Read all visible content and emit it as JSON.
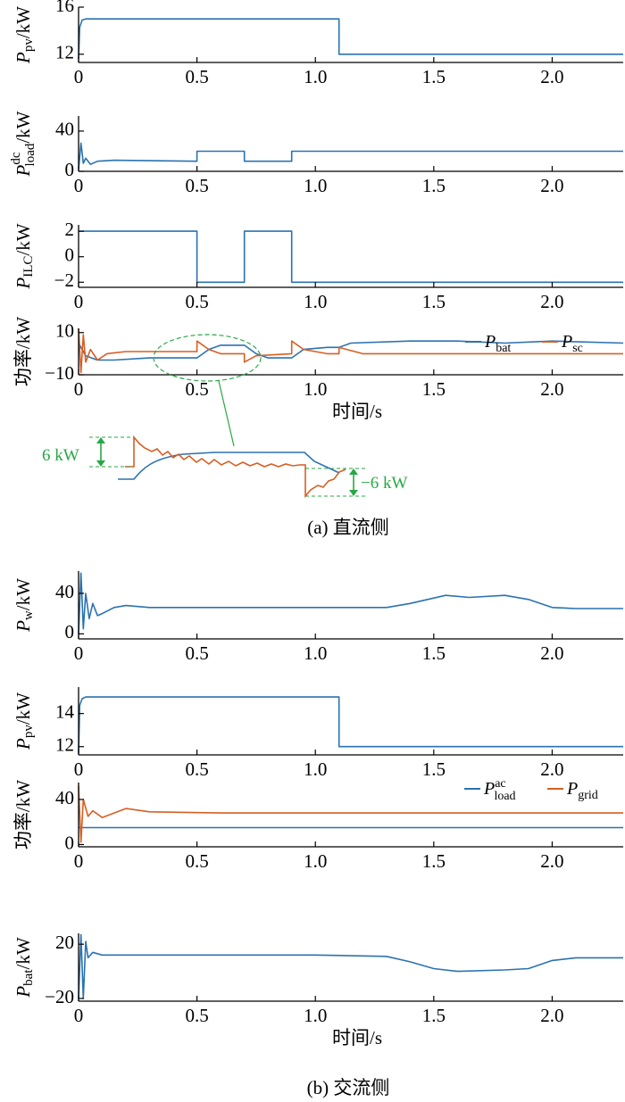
{
  "colors": {
    "blue": "#2b72b0",
    "orange": "#d65f24",
    "green": "#27a845",
    "axis": "#000000"
  },
  "section_a_caption": "(a)  直流侧",
  "section_b_caption": "(b)  交流侧",
  "zoom_annotations": {
    "up": "6 kW",
    "down": "−6 kW"
  },
  "chart_data": [
    {
      "id": "a1",
      "type": "line",
      "ylabel": "P_pv/kW",
      "xlim": [
        0,
        2.3
      ],
      "ylim": [
        11.3,
        16.0
      ],
      "yticks": [
        12,
        16
      ],
      "xticks": [
        0,
        0.5,
        1.0,
        1.5,
        2.0
      ],
      "xticklabels": [
        "0",
        "0.5",
        "1.0",
        "1.5",
        "2.0"
      ],
      "series": [
        {
          "color": "blue",
          "points": [
            [
              0,
              11.6
            ],
            [
              0.005,
              14.3
            ],
            [
              0.015,
              14.9
            ],
            [
              0.03,
              15.0
            ],
            [
              0.6,
              15.0
            ],
            [
              1.1,
              15.0
            ],
            [
              1.1,
              12.0
            ],
            [
              2.3,
              12.0
            ]
          ]
        }
      ]
    },
    {
      "id": "a2",
      "type": "line",
      "ylabel": "P_load^dc/kW",
      "xlim": [
        0,
        2.3
      ],
      "ylim": [
        0,
        55
      ],
      "yticks": [
        0,
        40
      ],
      "xticks": [
        0,
        0.5,
        1.0,
        1.5,
        2.0
      ],
      "xticklabels": [
        "0",
        "0.5",
        "1.0",
        "1.5",
        "2.0"
      ],
      "series": [
        {
          "color": "blue",
          "points": [
            [
              0,
              2
            ],
            [
              0.01,
              28
            ],
            [
              0.02,
              8
            ],
            [
              0.03,
              13
            ],
            [
              0.05,
              7
            ],
            [
              0.08,
              10
            ],
            [
              0.15,
              11
            ],
            [
              0.5,
              10
            ],
            [
              0.5,
              20
            ],
            [
              0.7,
              20
            ],
            [
              0.7,
              10
            ],
            [
              0.9,
              10
            ],
            [
              0.9,
              20
            ],
            [
              1.5,
              20
            ],
            [
              2.3,
              20
            ]
          ]
        }
      ]
    },
    {
      "id": "a3",
      "type": "line",
      "ylabel": "P_ILC/kW",
      "xlim": [
        0,
        2.3
      ],
      "ylim": [
        -2.4,
        2.5
      ],
      "yticks": [
        -2,
        0,
        2
      ],
      "yticklabels": [
        "−2",
        "0",
        "2"
      ],
      "xticks": [
        0,
        0.5,
        1.0,
        1.5,
        2.0
      ],
      "xticklabels": [
        "0",
        "0.5",
        "1.0",
        "1.5",
        "2.0"
      ],
      "series": [
        {
          "color": "blue",
          "points": [
            [
              0,
              2
            ],
            [
              0.5,
              2
            ],
            [
              0.5,
              -2
            ],
            [
              0.7,
              -2
            ],
            [
              0.7,
              2
            ],
            [
              0.9,
              2
            ],
            [
              0.9,
              -2
            ],
            [
              2.3,
              -2
            ]
          ]
        }
      ]
    },
    {
      "id": "a4",
      "type": "line",
      "ylabel": "功率/kW",
      "xlabel": "时间/s",
      "xlim": [
        0,
        2.3
      ],
      "ylim": [
        -10,
        12
      ],
      "yticks": [
        -10,
        10
      ],
      "yticklabels": [
        "−10",
        "10"
      ],
      "xticks": [
        0,
        0.5,
        1.0,
        1.5,
        2.0
      ],
      "xticklabels": [
        "0",
        "0.5",
        "1.0",
        "1.5",
        "2.0"
      ],
      "legend": {
        "position": "top-right",
        "items": [
          {
            "color": "blue",
            "label": "P_bat"
          },
          {
            "color": "orange",
            "label": "P_sc"
          }
        ]
      },
      "series": [
        {
          "name": "P_bat",
          "color": "blue",
          "points": [
            [
              0,
              5
            ],
            [
              0.01,
              3
            ],
            [
              0.03,
              -1
            ],
            [
              0.08,
              -3
            ],
            [
              0.15,
              -3
            ],
            [
              0.3,
              -2
            ],
            [
              0.5,
              -2
            ],
            [
              0.55,
              2
            ],
            [
              0.6,
              4
            ],
            [
              0.7,
              4
            ],
            [
              0.75,
              0
            ],
            [
              0.8,
              -2
            ],
            [
              0.9,
              -2
            ],
            [
              0.95,
              2
            ],
            [
              1.05,
              3
            ],
            [
              1.1,
              3
            ],
            [
              1.15,
              5
            ],
            [
              1.4,
              6
            ],
            [
              1.6,
              6
            ],
            [
              1.8,
              5
            ],
            [
              2.0,
              6
            ],
            [
              2.3,
              5
            ]
          ]
        },
        {
          "name": "P_sc",
          "color": "orange",
          "points": [
            [
              0,
              12
            ],
            [
              0.01,
              -9
            ],
            [
              0.02,
              9
            ],
            [
              0.03,
              -4
            ],
            [
              0.05,
              2
            ],
            [
              0.08,
              -3
            ],
            [
              0.12,
              0
            ],
            [
              0.2,
              1
            ],
            [
              0.5,
              1
            ],
            [
              0.5,
              6
            ],
            [
              0.55,
              2
            ],
            [
              0.6,
              0
            ],
            [
              0.7,
              0
            ],
            [
              0.7,
              -4
            ],
            [
              0.75,
              -1
            ],
            [
              0.9,
              0
            ],
            [
              0.9,
              6
            ],
            [
              0.95,
              2
            ],
            [
              1.05,
              0
            ],
            [
              1.1,
              0
            ],
            [
              1.1,
              3
            ],
            [
              1.2,
              0
            ],
            [
              2.3,
              0
            ]
          ]
        }
      ]
    },
    {
      "id": "b1",
      "type": "line",
      "ylabel": "P_w/kW",
      "xlim": [
        0,
        2.3
      ],
      "ylim": [
        -5,
        62
      ],
      "yticks": [
        0,
        40
      ],
      "xticks": [
        0,
        0.5,
        1.0,
        1.5,
        2.0
      ],
      "xticklabels": [
        "0",
        "0.5",
        "1.0",
        "1.5",
        "2.0"
      ],
      "series": [
        {
          "color": "blue",
          "points": [
            [
              0,
              0
            ],
            [
              0.01,
              60
            ],
            [
              0.02,
              5
            ],
            [
              0.03,
              40
            ],
            [
              0.045,
              15
            ],
            [
              0.06,
              30
            ],
            [
              0.08,
              18
            ],
            [
              0.1,
              20
            ],
            [
              0.15,
              26
            ],
            [
              0.2,
              28
            ],
            [
              0.3,
              26
            ],
            [
              0.6,
              26
            ],
            [
              1.0,
              26
            ],
            [
              1.3,
              26
            ],
            [
              1.4,
              30
            ],
            [
              1.55,
              38
            ],
            [
              1.65,
              36
            ],
            [
              1.8,
              38
            ],
            [
              1.9,
              34
            ],
            [
              2.0,
              26
            ],
            [
              2.1,
              25
            ],
            [
              2.3,
              25
            ]
          ]
        }
      ]
    },
    {
      "id": "b2",
      "type": "line",
      "ylabel": "P_pv/kW",
      "xlim": [
        0,
        2.3
      ],
      "ylim": [
        11.5,
        15.6
      ],
      "yticks": [
        12,
        14
      ],
      "xticks": [
        0,
        0.5,
        1.0,
        1.5,
        2.0
      ],
      "xticklabels": [
        "0",
        "0.5",
        "1.0",
        "1.5",
        "2.0"
      ],
      "series": [
        {
          "color": "blue",
          "points": [
            [
              0,
              11.6
            ],
            [
              0.005,
              14.5
            ],
            [
              0.015,
              14.9
            ],
            [
              0.03,
              15.0
            ],
            [
              1.1,
              15.0
            ],
            [
              1.1,
              12.0
            ],
            [
              2.3,
              12.0
            ]
          ]
        }
      ]
    },
    {
      "id": "b3",
      "type": "line",
      "ylabel": "功率/kW",
      "xlim": [
        0,
        2.3
      ],
      "ylim": [
        -2,
        55
      ],
      "yticks": [
        0,
        40
      ],
      "xticks": [
        0,
        0.5,
        1.0,
        1.5,
        2.0
      ],
      "xticklabels": [
        "0",
        "0.5",
        "1.0",
        "1.5",
        "2.0"
      ],
      "legend": {
        "position": "top-right",
        "items": [
          {
            "color": "blue",
            "label": "P_load^ac"
          },
          {
            "color": "orange",
            "label": "P_grid"
          }
        ]
      },
      "series": [
        {
          "name": "P_load^ac",
          "color": "blue",
          "points": [
            [
              0,
              15
            ],
            [
              2.3,
              15
            ]
          ]
        },
        {
          "name": "P_grid",
          "color": "orange",
          "points": [
            [
              0,
              52
            ],
            [
              0.01,
              2
            ],
            [
              0.02,
              40
            ],
            [
              0.04,
              25
            ],
            [
              0.06,
              30
            ],
            [
              0.1,
              24
            ],
            [
              0.15,
              28
            ],
            [
              0.2,
              32
            ],
            [
              0.3,
              29
            ],
            [
              0.6,
              28
            ],
            [
              1.0,
              28
            ],
            [
              2.0,
              28
            ],
            [
              2.3,
              28
            ]
          ]
        }
      ]
    },
    {
      "id": "b4",
      "type": "line",
      "ylabel": "P_bat/kW",
      "xlabel": "时间/s",
      "xlim": [
        0,
        2.3
      ],
      "ylim": [
        -22,
        28
      ],
      "yticks": [
        -20,
        20
      ],
      "yticklabels": [
        "−20",
        "20"
      ],
      "xticks": [
        0,
        0.5,
        1.0,
        1.5,
        2.0
      ],
      "xticklabels": [
        "0",
        "0.5",
        "1.0",
        "1.5",
        "2.0"
      ],
      "series": [
        {
          "color": "blue",
          "points": [
            [
              0,
              -20
            ],
            [
              0.01,
              27
            ],
            [
              0.02,
              -20
            ],
            [
              0.03,
              22
            ],
            [
              0.04,
              10
            ],
            [
              0.06,
              14
            ],
            [
              0.1,
              12
            ],
            [
              0.3,
              12
            ],
            [
              0.6,
              12
            ],
            [
              1.0,
              12
            ],
            [
              1.3,
              11
            ],
            [
              1.4,
              7
            ],
            [
              1.5,
              2
            ],
            [
              1.6,
              0
            ],
            [
              1.8,
              1
            ],
            [
              1.9,
              2
            ],
            [
              2.0,
              8
            ],
            [
              2.1,
              10
            ],
            [
              2.3,
              10
            ]
          ]
        }
      ]
    }
  ]
}
